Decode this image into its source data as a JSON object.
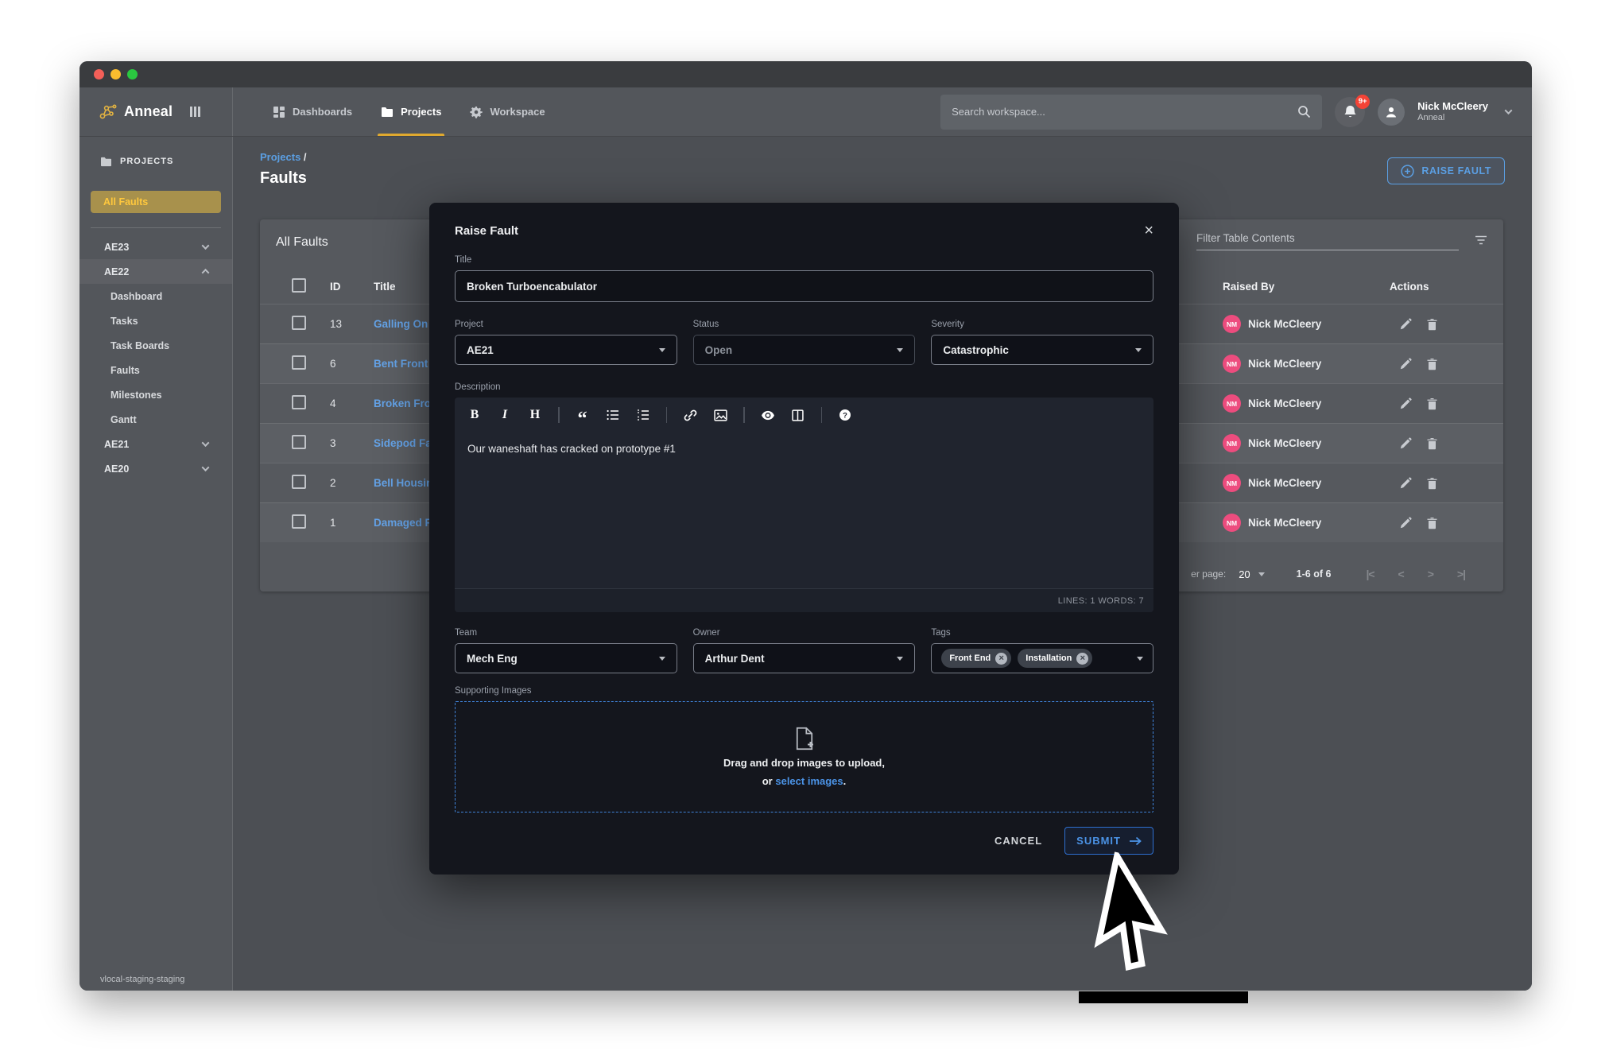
{
  "colors": {
    "accent_blue": "#5b9fe3",
    "accent_yellow": "#e0a92f",
    "avatar_pink": "#ee4d7f",
    "badge_red": "#f44336",
    "modal_bg": "#14161d"
  },
  "topbar": {
    "brand": "Anneal",
    "nav": [
      {
        "label": "Dashboards",
        "icon": "dashboard-grid-icon",
        "active": false
      },
      {
        "label": "Projects",
        "icon": "folder-icon",
        "active": true
      },
      {
        "label": "Workspace",
        "icon": "gear-icon",
        "active": false
      }
    ],
    "search_placeholder": "Search workspace...",
    "notifications_badge": "9+",
    "user": {
      "name": "Nick McCleery",
      "org": "Anneal"
    }
  },
  "sidebar": {
    "section": "PROJECTS",
    "all_faults_label": "All Faults",
    "projects": [
      {
        "label": "AE23",
        "expanded": false,
        "children": []
      },
      {
        "label": "AE22",
        "expanded": true,
        "children": [
          "Dashboard",
          "Tasks",
          "Task Boards",
          "Faults",
          "Milestones",
          "Gantt"
        ]
      },
      {
        "label": "AE21",
        "expanded": false,
        "children": []
      },
      {
        "label": "AE20",
        "expanded": false,
        "children": []
      }
    ],
    "footer": "vlocal-staging-staging"
  },
  "page": {
    "breadcrumb": "Projects",
    "breadcrumb_sep": " /",
    "title": "Faults",
    "raise_fault_button": "RAISE FAULT"
  },
  "table": {
    "card_title": "All Faults",
    "filter_placeholder": "Filter Table Contents",
    "columns": {
      "id": "ID",
      "title": "Title",
      "raised_by": "Raised By",
      "actions": "Actions"
    },
    "rows": [
      {
        "id": "13",
        "title": "Galling On",
        "raised_by": "Nick McCleery",
        "initials": "NM"
      },
      {
        "id": "6",
        "title": "Bent Front",
        "raised_by": "Nick McCleery",
        "initials": "NM"
      },
      {
        "id": "4",
        "title": "Broken Fro",
        "raised_by": "Nick McCleery",
        "initials": "NM"
      },
      {
        "id": "3",
        "title": "Sidepod Fa",
        "raised_by": "Nick McCleery",
        "initials": "NM"
      },
      {
        "id": "2",
        "title": "Bell Housin",
        "raised_by": "Nick McCleery",
        "initials": "NM"
      },
      {
        "id": "1",
        "title": "Damaged Fr",
        "raised_by": "Nick McCleery",
        "initials": "NM"
      }
    ],
    "pagination": {
      "per_page_label": "er page:",
      "per_page_value": "20",
      "range": "1-6 of 6",
      "first_icon": "|<",
      "prev_icon": "<",
      "next_icon": ">",
      "last_icon": ">|"
    }
  },
  "modal": {
    "title": "Raise Fault",
    "close_icon": "×",
    "fields": {
      "title": {
        "label": "Title",
        "value": "Broken Turboencabulator"
      },
      "project": {
        "label": "Project",
        "value": "AE21"
      },
      "status": {
        "label": "Status",
        "value": "Open"
      },
      "severity": {
        "label": "Severity",
        "value": "Catastrophic"
      },
      "description": {
        "label": "Description",
        "value": "Our waneshaft has cracked on prototype #1",
        "toolbar": [
          "bold",
          "italic",
          "heading",
          "divider",
          "blockquote",
          "bullet-list",
          "numbered-list",
          "divider",
          "link",
          "image",
          "divider",
          "preview",
          "table",
          "divider",
          "help"
        ],
        "status": "LINES: 1 WORDS: 7"
      },
      "team": {
        "label": "Team",
        "value": "Mech Eng"
      },
      "owner": {
        "label": "Owner",
        "value": "Arthur Dent"
      },
      "tags": {
        "label": "Tags",
        "values": [
          "Front End",
          "Installation"
        ]
      },
      "images": {
        "label": "Supporting Images",
        "drop_line1": "Drag and drop images to upload,",
        "drop_prefix": "or ",
        "drop_link": "select images",
        "drop_suffix": "."
      }
    },
    "cancel_button": "CANCEL",
    "submit_button": "SUBMIT"
  }
}
